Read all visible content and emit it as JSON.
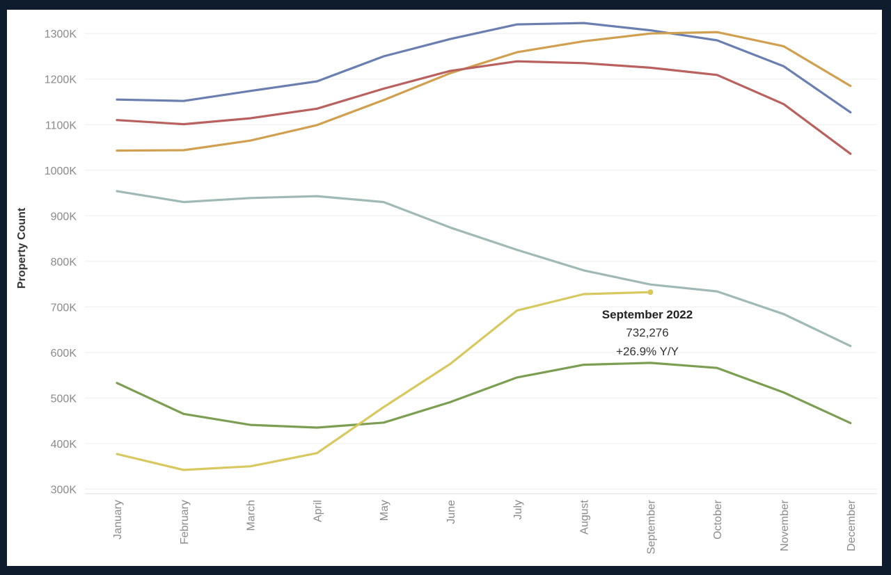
{
  "chart_data": {
    "type": "line",
    "ylabel": "Property Count",
    "categories": [
      "January",
      "February",
      "March",
      "April",
      "May",
      "June",
      "July",
      "August",
      "September",
      "October",
      "November",
      "December"
    ],
    "ylim": [
      290000,
      1340000
    ],
    "yticks": [
      300000,
      400000,
      500000,
      600000,
      700000,
      800000,
      900000,
      1000000,
      1100000,
      1200000,
      1300000
    ],
    "ytick_labels": [
      "300K",
      "400K",
      "500K",
      "600K",
      "700K",
      "800K",
      "900K",
      "1000K",
      "1100K",
      "1200K",
      "1300K"
    ],
    "grid": true,
    "series": [
      {
        "color": "#6a7fb0",
        "values": [
          1155000,
          1152000,
          1174000,
          1195000,
          1250000,
          1288000,
          1320000,
          1323000,
          1307000,
          1285000,
          1228000,
          1127000
        ]
      },
      {
        "color": "#d0a050",
        "values": [
          1043000,
          1044000,
          1065000,
          1099000,
          1154000,
          1213000,
          1259000,
          1283000,
          1300000,
          1303000,
          1272000,
          1185000
        ]
      },
      {
        "color": "#b8615f",
        "values": [
          1110000,
          1101000,
          1114000,
          1135000,
          1179000,
          1218000,
          1239000,
          1235000,
          1225000,
          1209000,
          1145000,
          1036000
        ]
      },
      {
        "color": "#9fb9b6",
        "values": [
          954000,
          930000,
          939000,
          943000,
          930000,
          874000,
          825000,
          780000,
          749000,
          734000,
          684000,
          614000
        ]
      },
      {
        "color": "#7b9e52",
        "values": [
          533000,
          465000,
          441000,
          435000,
          446000,
          491000,
          545000,
          573000,
          577000,
          566000,
          512000,
          445000
        ]
      },
      {
        "color": "#d8c860",
        "values": [
          377000,
          342000,
          350000,
          379000,
          480000,
          575000,
          692000,
          728000,
          732276,
          null,
          null,
          null
        ],
        "end_marker": true
      }
    ],
    "annotation": {
      "title": "September 2022",
      "value": "732,276",
      "change": "+26.9% Y/Y"
    }
  }
}
